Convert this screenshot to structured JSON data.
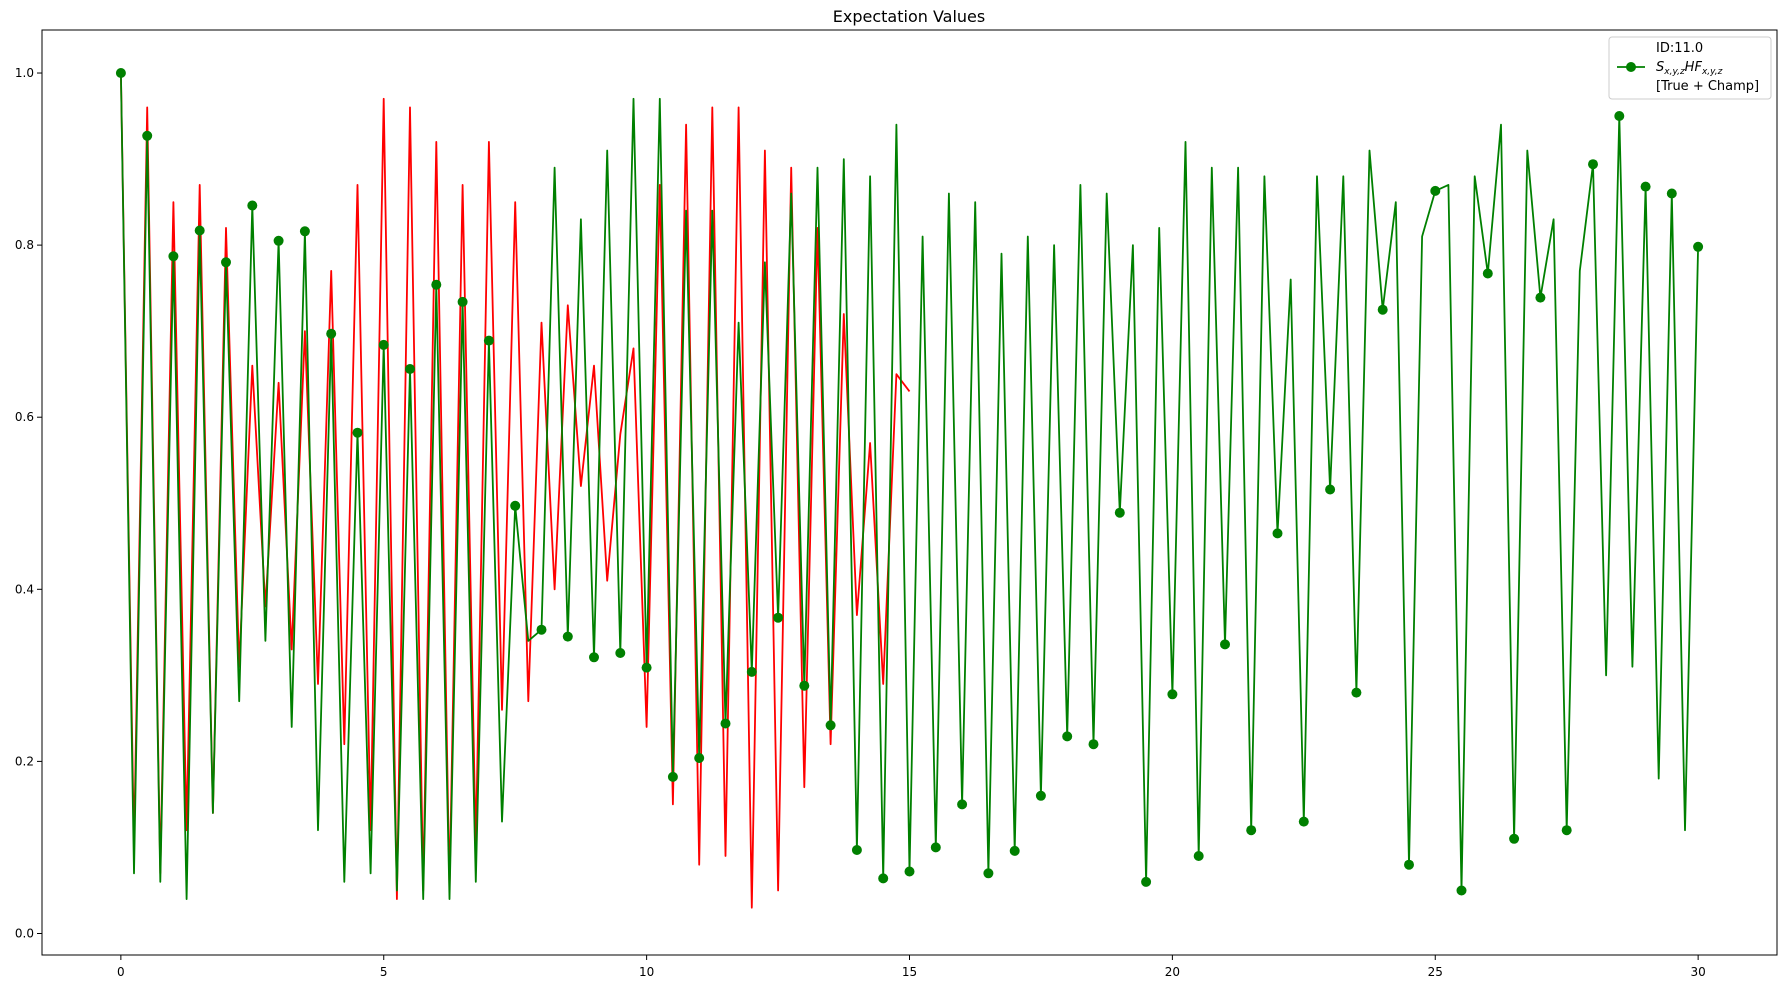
{
  "chart_data": {
    "type": "line",
    "title": "Expectation Values",
    "xlabel": "",
    "ylabel": "",
    "xlim": [
      -1.5,
      31.5
    ],
    "ylim": [
      -0.025,
      1.05
    ],
    "xticks": [
      0,
      5,
      10,
      15,
      20,
      25,
      30
    ],
    "yticks": [
      0.0,
      0.2,
      0.4,
      0.6,
      0.8,
      1.0
    ],
    "xtick_labels": [
      "0",
      "5",
      "10",
      "15",
      "20",
      "25",
      "30"
    ],
    "ytick_labels": [
      "0.0",
      "0.2",
      "0.4",
      "0.6",
      "0.8",
      "1.0"
    ],
    "grid": false,
    "legend": {
      "placement": "top-right",
      "header": "ID:11.0",
      "footer": "[True + Champ]"
    },
    "series": [
      {
        "name": "",
        "role": "true",
        "color": "#ff0000",
        "marker": "none",
        "x": [
          0,
          0.25,
          0.5,
          0.75,
          1.0,
          1.25,
          1.5,
          1.75,
          2.0,
          2.25,
          2.5,
          2.75,
          3.0,
          3.25,
          3.5,
          3.75,
          4.0,
          4.25,
          4.5,
          4.75,
          5.0,
          5.25,
          5.5,
          5.75,
          6.0,
          6.25,
          6.5,
          6.75,
          7.0,
          7.25,
          7.5,
          7.75,
          8.0,
          8.25,
          8.5,
          8.75,
          9.0,
          9.25,
          9.5,
          9.75,
          10.0,
          10.25,
          10.5,
          10.75,
          11.0,
          11.25,
          11.5,
          11.75,
          12.0,
          12.25,
          12.5,
          12.75,
          13.0,
          13.25,
          13.5,
          13.75,
          14.0,
          14.25,
          14.5,
          14.75,
          15.0
        ],
        "y": [
          1.0,
          0.1,
          0.96,
          0.07,
          0.85,
          0.12,
          0.87,
          0.14,
          0.82,
          0.31,
          0.66,
          0.38,
          0.64,
          0.33,
          0.7,
          0.29,
          0.77,
          0.22,
          0.87,
          0.12,
          0.97,
          0.04,
          0.96,
          0.05,
          0.92,
          0.05,
          0.87,
          0.1,
          0.92,
          0.26,
          0.85,
          0.27,
          0.71,
          0.4,
          0.73,
          0.52,
          0.66,
          0.41,
          0.58,
          0.68,
          0.24,
          0.87,
          0.15,
          0.94,
          0.08,
          0.96,
          0.09,
          0.96,
          0.03,
          0.91,
          0.05,
          0.89,
          0.17,
          0.82,
          0.22,
          0.72,
          0.37,
          0.57,
          0.29,
          0.65,
          0.63
        ]
      },
      {
        "name": "S_{x,y,z}HF_{x,y,z}",
        "role": "champ",
        "color": "#008000",
        "marker": "circle",
        "marker_every": 0.5,
        "x": [
          0,
          0.25,
          0.5,
          0.75,
          1.0,
          1.25,
          1.5,
          1.75,
          2.0,
          2.25,
          2.5,
          2.75,
          3.0,
          3.25,
          3.5,
          3.75,
          4.0,
          4.25,
          4.5,
          4.75,
          5.0,
          5.25,
          5.5,
          5.75,
          6.0,
          6.25,
          6.5,
          6.75,
          7.0,
          7.25,
          7.5,
          7.75,
          8.0,
          8.25,
          8.5,
          8.75,
          9.0,
          9.25,
          9.5,
          9.75,
          10.0,
          10.25,
          10.5,
          10.75,
          11.0,
          11.25,
          11.5,
          11.75,
          12.0,
          12.25,
          12.5,
          12.75,
          13.0,
          13.25,
          13.5,
          13.75,
          14.0,
          14.25,
          14.5,
          14.75,
          15.0,
          15.25,
          15.5,
          15.75,
          16.0,
          16.25,
          16.5,
          16.75,
          17.0,
          17.25,
          17.5,
          17.75,
          18.0,
          18.25,
          18.5,
          18.75,
          19.0,
          19.25,
          19.5,
          19.75,
          20.0,
          20.25,
          20.5,
          20.75,
          21.0,
          21.25,
          21.5,
          21.75,
          22.0,
          22.25,
          22.5,
          22.75,
          23.0,
          23.25,
          23.5,
          23.75,
          24.0,
          24.25,
          24.5,
          24.75,
          25.0,
          25.25,
          25.5,
          25.75,
          26.0,
          26.25,
          26.5,
          26.75,
          27.0,
          27.25,
          27.5,
          27.75,
          28.0,
          28.25,
          28.5,
          28.75,
          29.0,
          29.25,
          29.5,
          29.75,
          30.0
        ],
        "y": [
          1.0,
          0.07,
          0.927,
          0.06,
          0.787,
          0.04,
          0.817,
          0.14,
          0.78,
          0.27,
          0.846,
          0.34,
          0.805,
          0.24,
          0.816,
          0.12,
          0.697,
          0.06,
          0.582,
          0.07,
          0.684,
          0.05,
          0.656,
          0.04,
          0.754,
          0.04,
          0.734,
          0.06,
          0.689,
          0.13,
          0.497,
          0.34,
          0.353,
          0.89,
          0.345,
          0.83,
          0.321,
          0.91,
          0.326,
          0.97,
          0.309,
          0.97,
          0.182,
          0.84,
          0.204,
          0.84,
          0.244,
          0.71,
          0.304,
          0.78,
          0.367,
          0.86,
          0.288,
          0.89,
          0.242,
          0.9,
          0.097,
          0.88,
          0.064,
          0.94,
          0.072,
          0.81,
          0.1,
          0.86,
          0.15,
          0.85,
          0.07,
          0.79,
          0.096,
          0.81,
          0.16,
          0.8,
          0.229,
          0.87,
          0.22,
          0.86,
          0.489,
          0.8,
          0.06,
          0.82,
          0.278,
          0.92,
          0.09,
          0.89,
          0.336,
          0.89,
          0.12,
          0.88,
          0.465,
          0.76,
          0.13,
          0.88,
          0.516,
          0.88,
          0.28,
          0.91,
          0.725,
          0.85,
          0.08,
          0.81,
          0.863,
          0.87,
          0.05,
          0.88,
          0.767,
          0.94,
          0.11,
          0.91,
          0.739,
          0.83,
          0.12,
          0.77,
          0.894,
          0.3,
          0.95,
          0.31,
          0.868,
          0.18,
          0.86,
          0.12,
          0.798
        ]
      }
    ]
  }
}
